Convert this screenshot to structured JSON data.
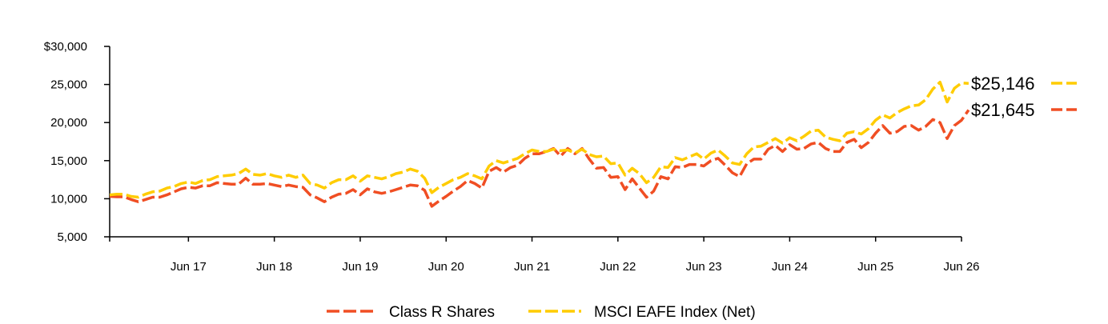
{
  "chart_data": {
    "type": "line",
    "title": "",
    "xlabel": "",
    "ylabel": "",
    "ylim": [
      5000,
      30000
    ],
    "y_ticks": [
      {
        "value": 5000,
        "label": "5,000"
      },
      {
        "value": 10000,
        "label": "10,000"
      },
      {
        "value": 15000,
        "label": "15,000"
      },
      {
        "value": 20000,
        "label": "20,000"
      },
      {
        "value": 25000,
        "label": "25,000"
      },
      {
        "value": 30000,
        "label": "$30,000"
      }
    ],
    "x_range": [
      0,
      119
    ],
    "x_ticks": [
      {
        "value": 11,
        "label": "Jun 17"
      },
      {
        "value": 23,
        "label": "Jun 18"
      },
      {
        "value": 35,
        "label": "Jun 19"
      },
      {
        "value": 47,
        "label": "Jun 20"
      },
      {
        "value": 59,
        "label": "Jun 21"
      },
      {
        "value": 71,
        "label": "Jun 22"
      },
      {
        "value": 83,
        "label": "Jun 23"
      },
      {
        "value": 95,
        "label": "Jun 24"
      },
      {
        "value": 107,
        "label": "Jun 25"
      },
      {
        "value": 119,
        "label": "Jun 26"
      }
    ],
    "grid": false,
    "legend_position": "bottom-center",
    "series": [
      {
        "name": "Class R Shares",
        "color": "#f04e23",
        "end_label": "$21,645",
        "values": [
          10300,
          10250,
          10250,
          9900,
          9600,
          9900,
          10200,
          10200,
          10500,
          10900,
          11300,
          11500,
          11400,
          11700,
          11700,
          12100,
          12000,
          11900,
          11900,
          12700,
          11900,
          11900,
          12000,
          11800,
          11600,
          11800,
          11600,
          11500,
          10500,
          10100,
          9600,
          10200,
          10600,
          10700,
          11200,
          10500,
          11300,
          10900,
          10700,
          10900,
          11200,
          11500,
          11800,
          11700,
          11100,
          9000,
          9700,
          10300,
          11000,
          11600,
          12400,
          12000,
          11400,
          13600,
          14100,
          13500,
          14100,
          14400,
          15300,
          15900,
          15900,
          16200,
          16600,
          15600,
          16600,
          15900,
          16600,
          15200,
          14000,
          14100,
          12800,
          12900,
          11200,
          12600,
          11400,
          10200,
          11000,
          12900,
          12600,
          14200,
          14100,
          14500,
          14500,
          14300,
          15000,
          15300,
          14400,
          13400,
          12900,
          14600,
          15200,
          15200,
          16500,
          17000,
          16200,
          17100,
          16500,
          16600,
          17200,
          17400,
          16600,
          16200,
          16200,
          17400,
          17800,
          16700,
          17400,
          18600,
          19600,
          18600,
          18800,
          19500,
          19600,
          19000,
          19500,
          20400,
          20000,
          17900,
          19600,
          20300,
          21645
        ]
      },
      {
        "name": "MSCI EAFE Index (Net)",
        "color": "#ffcc00",
        "end_label": "$25,146",
        "values": [
          10500,
          10600,
          10600,
          10300,
          10200,
          10600,
          10900,
          11000,
          11400,
          11600,
          12000,
          12200,
          12000,
          12400,
          12500,
          12900,
          13000,
          13100,
          13300,
          13900,
          13200,
          13100,
          13300,
          13000,
          12800,
          13100,
          12800,
          13100,
          12000,
          11800,
          11400,
          12100,
          12500,
          12500,
          13000,
          12300,
          13000,
          12800,
          12600,
          12900,
          13300,
          13500,
          13900,
          13600,
          12700,
          10800,
          11500,
          12000,
          12500,
          12800,
          13300,
          13000,
          12600,
          14300,
          15000,
          14700,
          15000,
          15300,
          15900,
          16400,
          16200,
          16200,
          16500,
          16300,
          16400,
          16000,
          16500,
          15800,
          15500,
          15600,
          14600,
          14700,
          13100,
          14000,
          13300,
          12100,
          12800,
          14200,
          14100,
          15400,
          15100,
          15500,
          15900,
          15200,
          16000,
          16400,
          15600,
          14700,
          14500,
          15900,
          16800,
          16900,
          17400,
          17900,
          17300,
          18000,
          17600,
          18200,
          18900,
          19000,
          18100,
          17800,
          17600,
          18600,
          18800,
          18500,
          19200,
          20300,
          21000,
          20600,
          21300,
          21800,
          22200,
          22300,
          23000,
          24400,
          25300,
          22700,
          24500,
          25200,
          25146
        ]
      }
    ]
  }
}
